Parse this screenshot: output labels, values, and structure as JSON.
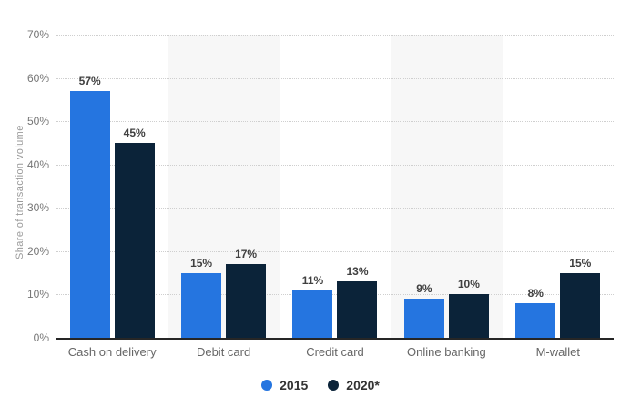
{
  "chart_data": {
    "type": "bar",
    "title": "",
    "categories": [
      "Cash on delivery",
      "Debit card",
      "Credit card",
      "Online banking",
      "M-wallet"
    ],
    "series": [
      {
        "name": "2015",
        "color": "#2575e0",
        "values": [
          57,
          15,
          11,
          9,
          8
        ]
      },
      {
        "name": "2020*",
        "color": "#0b2339",
        "values": [
          45,
          17,
          13,
          10,
          15
        ]
      }
    ],
    "xlabel": "",
    "ylabel": "Share of transaction volume",
    "ylim": [
      0,
      70
    ],
    "ytick_step": 10,
    "ytick_suffix": "%",
    "data_label_suffix": "%",
    "grid": true,
    "gridline_style": "dotted",
    "legend_position": "bottom",
    "banded_category_indexes": [
      1,
      3
    ],
    "band_color": "#f7f7f7",
    "axis_line_color": "#262626"
  }
}
